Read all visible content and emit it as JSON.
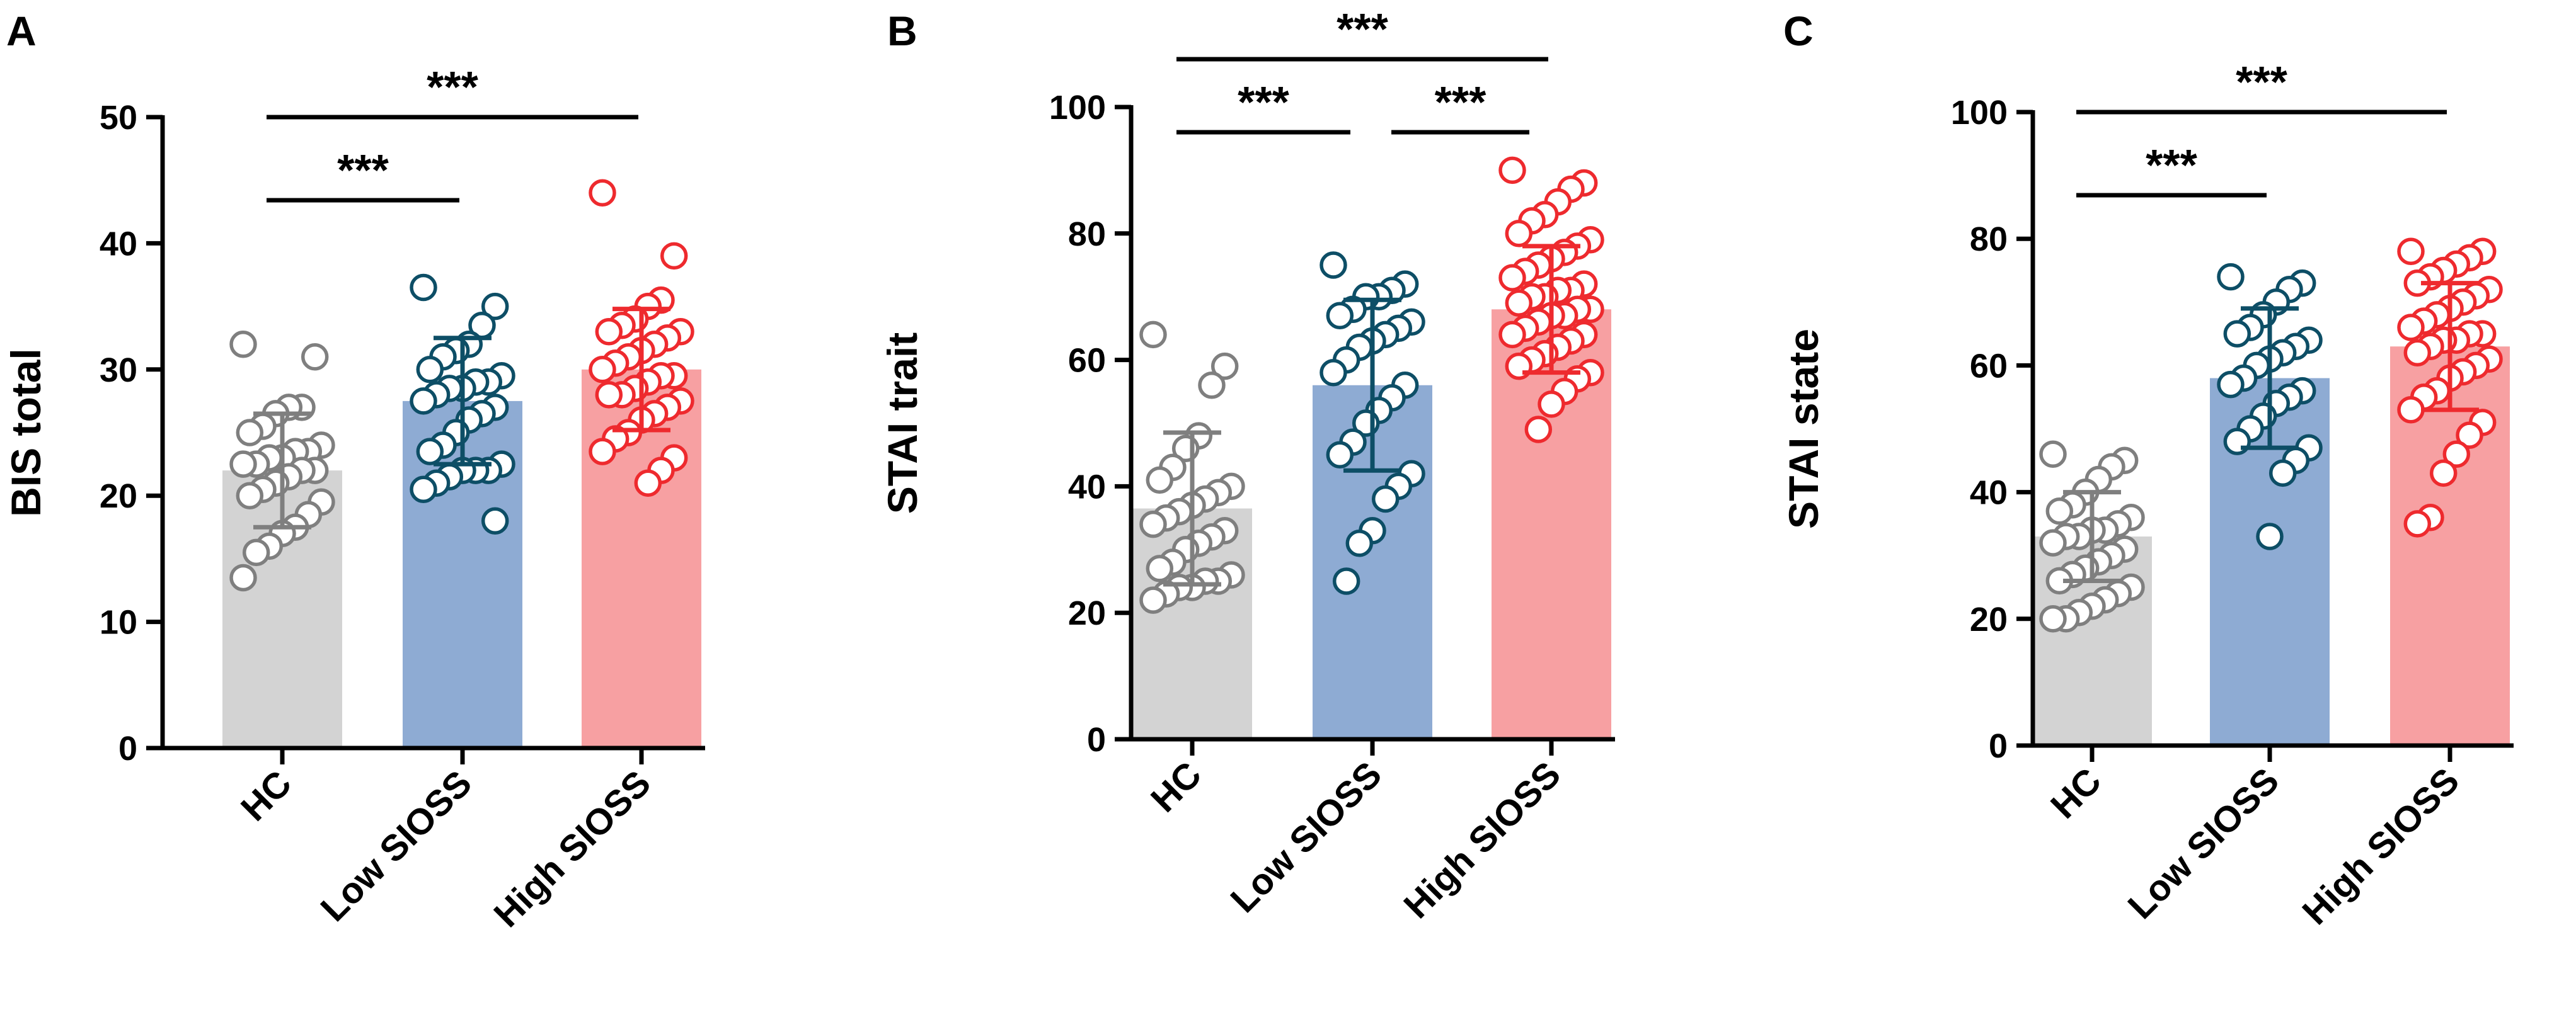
{
  "figure": {
    "panels": [
      "A",
      "B",
      "C"
    ]
  },
  "chart_data": [
    {
      "panel": "A",
      "type": "bar",
      "categories": [
        "HC",
        "Low SIOSS",
        "High SIOSS"
      ],
      "ylabel": "BIS total",
      "ylim": [
        0,
        50
      ],
      "yticks": [
        0,
        10,
        20,
        30,
        40,
        50
      ],
      "values": [
        22,
        27.5,
        30
      ],
      "sd": [
        4.5,
        5,
        4.8
      ],
      "colors": [
        "#d3d3d3",
        "#8eabd3",
        "#f7a0a2"
      ],
      "point_colors": [
        "#7f7f7f",
        "#0d4e66",
        "#ee2a2e"
      ],
      "points": [
        [
          32,
          31,
          27,
          27,
          26.5,
          25.5,
          25,
          24,
          23.5,
          23.5,
          23,
          23,
          22.5,
          22.5,
          22,
          22,
          21.5,
          21,
          20.5,
          20,
          19.5,
          18.5,
          17.5,
          17,
          16,
          15.5,
          13.5
        ],
        [
          36.5,
          35,
          33.5,
          32,
          31.5,
          31,
          30,
          29.5,
          29,
          29,
          28.5,
          28.5,
          28,
          27.5,
          27,
          26.5,
          26,
          25,
          24,
          23.5,
          22.5,
          22,
          22,
          22,
          21.5,
          21,
          20.5,
          18
        ],
        [
          44,
          39,
          35.5,
          35,
          34,
          33.5,
          33,
          33,
          32.5,
          32,
          31.5,
          31,
          30.5,
          30,
          29.5,
          29.5,
          29,
          28.5,
          28,
          28,
          27.5,
          27,
          26.5,
          26,
          25,
          24.5,
          23.5,
          23,
          22,
          21
        ]
      ],
      "significance": [
        {
          "from": 0,
          "to": 1,
          "label": "***"
        },
        {
          "from": 0,
          "to": 2,
          "label": "***"
        }
      ]
    },
    {
      "panel": "B",
      "type": "bar",
      "categories": [
        "HC",
        "Low SIOSS",
        "High SIOSS"
      ],
      "ylabel": "STAI trait",
      "ylim": [
        0,
        100
      ],
      "yticks": [
        0,
        20,
        40,
        60,
        80,
        100
      ],
      "values": [
        36.5,
        56,
        68
      ],
      "sd": [
        12,
        13.5,
        10
      ],
      "colors": [
        "#d3d3d3",
        "#8eabd3",
        "#f7a0a2"
      ],
      "point_colors": [
        "#7f7f7f",
        "#0d4e66",
        "#ee2a2e"
      ],
      "points": [
        [
          64,
          59,
          56,
          48,
          46,
          43,
          41,
          40,
          39,
          38,
          37,
          36,
          35,
          34,
          33,
          32,
          31,
          30,
          28,
          27,
          26,
          25,
          25,
          24,
          24,
          23,
          22
        ],
        [
          75,
          72,
          71,
          70,
          70,
          68,
          67,
          66,
          65,
          64,
          63,
          62,
          60,
          58,
          56,
          54,
          52,
          50,
          47,
          45,
          42,
          40,
          38,
          33,
          31,
          25
        ],
        [
          90,
          88,
          87,
          85,
          83,
          82,
          80,
          79,
          78,
          77,
          76,
          75,
          74,
          73,
          72,
          71,
          71,
          70,
          70,
          69,
          68,
          68,
          67,
          67,
          66,
          65,
          64,
          64,
          63,
          62,
          61,
          60,
          59,
          58,
          57,
          55,
          53,
          49
        ]
      ],
      "significance": [
        {
          "from": 0,
          "to": 1,
          "label": "***"
        },
        {
          "from": 1,
          "to": 2,
          "label": "***"
        },
        {
          "from": 0,
          "to": 2,
          "label": "***"
        }
      ]
    },
    {
      "panel": "C",
      "type": "bar",
      "categories": [
        "HC",
        "Low SIOSS",
        "High SIOSS"
      ],
      "ylabel": "STAI state",
      "ylim": [
        0,
        100
      ],
      "yticks": [
        0,
        20,
        40,
        60,
        80,
        100
      ],
      "values": [
        33,
        58,
        63
      ],
      "sd": [
        7,
        11,
        10
      ],
      "colors": [
        "#d3d3d3",
        "#8eabd3",
        "#f7a0a2"
      ],
      "point_colors": [
        "#7f7f7f",
        "#0d4e66",
        "#ee2a2e"
      ],
      "points": [
        [
          46,
          45,
          44,
          42,
          40,
          38,
          37,
          36,
          35,
          34,
          34,
          33,
          33,
          32,
          31,
          30,
          29,
          28,
          27,
          26,
          25,
          24,
          23,
          22,
          21,
          20,
          20
        ],
        [
          74,
          73,
          72,
          70,
          68,
          66,
          65,
          64,
          63,
          62,
          61,
          60,
          58,
          57,
          56,
          55,
          54,
          52,
          50,
          48,
          47,
          45,
          43,
          33
        ],
        [
          78,
          78,
          77,
          76,
          75,
          74,
          73,
          72,
          71,
          70,
          69,
          68,
          67,
          66,
          65,
          65,
          64,
          64,
          63,
          62,
          61,
          60,
          59,
          58,
          56,
          55,
          53,
          51,
          49,
          46,
          43,
          36,
          35
        ]
      ],
      "significance": [
        {
          "from": 0,
          "to": 1,
          "label": "***"
        },
        {
          "from": 0,
          "to": 2,
          "label": "***"
        }
      ]
    }
  ]
}
